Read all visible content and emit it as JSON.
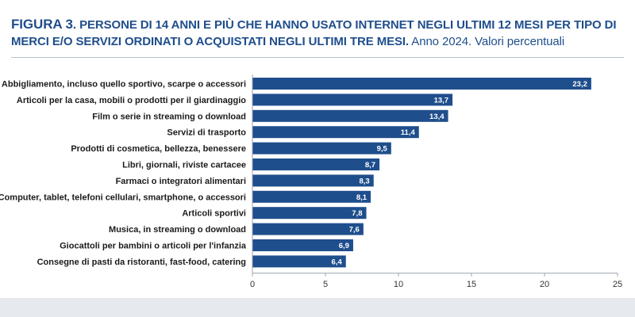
{
  "header": {
    "figure_label": "FIGURA 3",
    "separator": ".",
    "title": "PERSONE DI 14 ANNI E PIÙ CHE HANNO USATO INTERNET NEGLI ULTIMI 12 MESI PER TIPO DI MERCI E/O SERVIZI ORDINATI O ACQUISTATI NEGLI ULTIMI TRE MESI.",
    "subtitle": "Anno 2024. Valori percentuali"
  },
  "chart_data": {
    "type": "bar",
    "orientation": "horizontal",
    "categories": [
      "Abbigliamento, incluso quello sportivo, scarpe o accessori",
      "Articoli per la casa, mobili o prodotti per il giardinaggio",
      "Film o serie in streaming o download",
      "Servizi di trasporto",
      "Prodotti di cosmetica, bellezza, benessere",
      "Libri, giornali, riviste cartacee",
      "Farmaci o integratori alimentari",
      "Computer, tablet, telefoni cellulari, smartphone, o accessori",
      "Articoli sportivi",
      "Musica, in streaming o download",
      "Giocattoli per bambini o articoli per l'infanzia",
      "Consegne di pasti da ristoranti, fast-food, catering"
    ],
    "values": [
      23.2,
      13.7,
      13.4,
      11.4,
      9.5,
      8.7,
      8.3,
      8.1,
      7.8,
      7.6,
      6.9,
      6.4
    ],
    "value_labels": [
      "23,2",
      "13,7",
      "13,4",
      "11,4",
      "9,5",
      "8,7",
      "8,3",
      "8,1",
      "7,8",
      "7,6",
      "6,9",
      "6,4"
    ],
    "xlim": [
      0,
      25
    ],
    "xticks": [
      0,
      5,
      10,
      15,
      20,
      25
    ],
    "xtick_labels": [
      "0",
      "5",
      "10",
      "15",
      "20",
      "25"
    ],
    "grid": false,
    "legend": false,
    "bar_color": "#1f4e8c"
  }
}
